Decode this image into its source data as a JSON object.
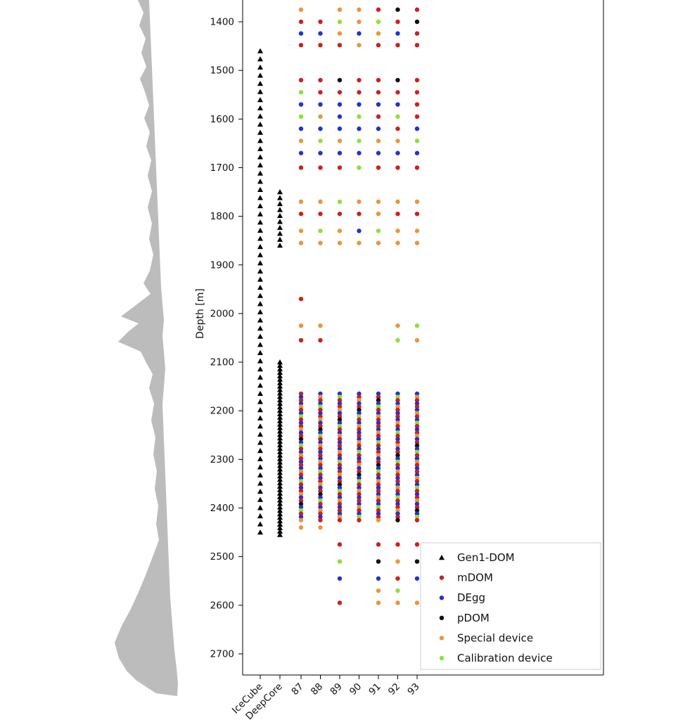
{
  "chart_data": {
    "type": "scatter",
    "title": "",
    "ylabel": "Depth [m]",
    "ylim": [
      1355,
      2745
    ],
    "y_ticks": [
      1400,
      1500,
      1600,
      1700,
      1800,
      1900,
      2000,
      2100,
      2200,
      2300,
      2400,
      2500,
      2600,
      2700
    ],
    "categories": [
      "IceCube",
      "DeepCore",
      "87",
      "88",
      "89",
      "90",
      "91",
      "92",
      "93"
    ],
    "legend_position": "lower right",
    "colors": {
      "gen1": "#000000",
      "mdom": "#cc2020",
      "degg": "#2233cc",
      "pdom": "#111111",
      "special": "#e8963c",
      "cal": "#8de03c",
      "dust": "#bcbcbc"
    },
    "legend": [
      {
        "key": "gen1",
        "label": "Gen1-DOM",
        "marker": "triangle"
      },
      {
        "key": "mdom",
        "label": "mDOM",
        "marker": "dot"
      },
      {
        "key": "degg",
        "label": "DEgg",
        "marker": "dot"
      },
      {
        "key": "pdom",
        "label": "pDOM",
        "marker": "dot"
      },
      {
        "key": "special",
        "label": "Special device",
        "marker": "dot"
      },
      {
        "key": "cal",
        "label": "Calibration device",
        "marker": "dot"
      }
    ],
    "gen1_runs": [
      {
        "column": "IceCube",
        "start_depth": 1460,
        "end_depth": 2450,
        "count": 60
      },
      {
        "column": "DeepCore",
        "start_depth": 1750,
        "end_depth": 1860,
        "count": 10
      },
      {
        "column": "DeepCore",
        "start_depth": 2100,
        "end_depth": 2455,
        "count": 51
      }
    ],
    "sparse_rows": [
      {
        "depth": 1375,
        "points": {
          "87": "special",
          "89": "special",
          "90": "special",
          "91": "mdom",
          "92": "pdom",
          "93": "mdom"
        }
      },
      {
        "depth": 1400,
        "points": {
          "87": "mdom",
          "88": "mdom",
          "89": "cal",
          "90": "special",
          "91": "cal",
          "92": "mdom",
          "93": "pdom"
        }
      },
      {
        "depth": 1424,
        "points": {
          "87": "degg",
          "88": "degg",
          "89": "special",
          "90": "degg",
          "91": "special",
          "92": "degg",
          "93": "mdom"
        }
      },
      {
        "depth": 1448,
        "points": {
          "87": "mdom",
          "88": "mdom",
          "89": "mdom",
          "90": "special",
          "91": "mdom",
          "92": "mdom",
          "93": "mdom"
        }
      },
      {
        "depth": 1520,
        "points": {
          "87": "mdom",
          "88": "mdom",
          "89": "pdom",
          "90": "mdom",
          "91": "mdom",
          "92": "pdom",
          "93": "mdom"
        }
      },
      {
        "depth": 1545,
        "points": {
          "87": "cal",
          "88": "mdom",
          "89": "mdom",
          "90": "mdom",
          "91": "mdom",
          "92": "mdom",
          "93": "mdom"
        }
      },
      {
        "depth": 1570,
        "points": {
          "87": "degg",
          "88": "degg",
          "89": "degg",
          "90": "degg",
          "91": "degg",
          "92": "degg",
          "93": "mdom"
        }
      },
      {
        "depth": 1595,
        "points": {
          "87": "cal",
          "88": "special",
          "89": "degg",
          "90": "cal",
          "91": "mdom",
          "92": "cal",
          "93": "mdom"
        }
      },
      {
        "depth": 1620,
        "points": {
          "87": "degg",
          "88": "degg",
          "89": "degg",
          "90": "degg",
          "91": "degg",
          "92": "mdom",
          "93": "degg"
        }
      },
      {
        "depth": 1645,
        "points": {
          "87": "special",
          "88": "cal",
          "89": "special",
          "90": "cal",
          "91": "special",
          "92": "special",
          "93": "cal"
        }
      },
      {
        "depth": 1670,
        "points": {
          "87": "degg",
          "88": "degg",
          "89": "degg",
          "90": "degg",
          "91": "degg",
          "92": "degg",
          "93": "degg"
        }
      },
      {
        "depth": 1700,
        "points": {
          "87": "mdom",
          "88": "mdom",
          "89": "mdom",
          "90": "cal",
          "91": "mdom",
          "92": "mdom",
          "93": "mdom"
        }
      },
      {
        "depth": 1770,
        "points": {
          "87": "special",
          "88": "special",
          "89": "cal",
          "90": "special",
          "91": "special",
          "92": "special",
          "93": "special"
        }
      },
      {
        "depth": 1795,
        "points": {
          "87": "mdom",
          "88": "mdom",
          "89": "mdom",
          "90": "mdom",
          "91": "special",
          "92": "mdom",
          "93": "mdom"
        }
      },
      {
        "depth": 1830,
        "points": {
          "87": "special",
          "88": "cal",
          "89": "special",
          "90": "degg",
          "91": "cal",
          "92": "special",
          "93": "special"
        }
      },
      {
        "depth": 1855,
        "points": {
          "87": "special",
          "88": "special",
          "89": "special",
          "90": "special",
          "91": "special",
          "92": "special",
          "93": "special"
        }
      },
      {
        "depth": 1970,
        "points": {
          "87": "mdom"
        }
      },
      {
        "depth": 2025,
        "points": {
          "87": "special",
          "88": "special",
          "92": "special",
          "93": "cal"
        }
      },
      {
        "depth": 2055,
        "points": {
          "87": "mdom",
          "88": "mdom",
          "92": "cal",
          "93": "special"
        }
      },
      {
        "depth": 2440,
        "points": {
          "87": "special",
          "88": "special"
        }
      },
      {
        "depth": 2475,
        "points": {
          "89": "mdom",
          "91": "mdom",
          "92": "mdom",
          "93": "mdom"
        }
      },
      {
        "depth": 2510,
        "points": {
          "89": "cal",
          "91": "pdom",
          "92": "special",
          "93": "pdom"
        }
      },
      {
        "depth": 2545,
        "points": {
          "89": "degg",
          "91": "degg",
          "92": "mdom",
          "93": "degg"
        }
      },
      {
        "depth": 2570,
        "points": {
          "91": "special",
          "92": "cal"
        }
      },
      {
        "depth": 2595,
        "points": {
          "89": "mdom",
          "91": "special",
          "92": "special",
          "93": "special"
        }
      }
    ],
    "dense_runs": [
      {
        "columns": [
          "87",
          "88",
          "89",
          "90",
          "91",
          "92",
          "93"
        ],
        "start_depth": 2165,
        "end_depth": 2425,
        "count": 40,
        "pattern": [
          "mdom",
          "degg",
          "mdom",
          "degg",
          "special",
          "mdom",
          "degg",
          "cal",
          "mdom",
          "degg",
          "mdom",
          "special",
          "degg",
          "mdom",
          "pdom",
          "degg",
          "cal",
          "mdom",
          "degg",
          "special"
        ],
        "column_offset_step": 3
      }
    ],
    "dust_profile": {
      "polygon": [
        [
          196,
          0
        ],
        [
          204,
          18
        ],
        [
          198,
          36
        ],
        [
          207,
          55
        ],
        [
          201,
          75
        ],
        [
          208,
          95
        ],
        [
          199,
          112
        ],
        [
          206,
          130
        ],
        [
          212,
          150
        ],
        [
          205,
          168
        ],
        [
          213,
          188
        ],
        [
          208,
          208
        ],
        [
          215,
          228
        ],
        [
          210,
          250
        ],
        [
          216,
          272
        ],
        [
          210,
          295
        ],
        [
          216,
          318
        ],
        [
          212,
          340
        ],
        [
          218,
          362
        ],
        [
          213,
          385
        ],
        [
          204,
          403
        ],
        [
          214,
          418
        ],
        [
          188,
          438
        ],
        [
          172,
          450
        ],
        [
          197,
          460
        ],
        [
          182,
          472
        ],
        [
          168,
          486
        ],
        [
          200,
          500
        ],
        [
          208,
          516
        ],
        [
          217,
          532
        ],
        [
          212,
          552
        ],
        [
          219,
          574
        ],
        [
          215,
          598
        ],
        [
          221,
          622
        ],
        [
          218,
          646
        ],
        [
          223,
          670
        ],
        [
          220,
          695
        ],
        [
          225,
          720
        ],
        [
          222,
          745
        ],
        [
          226,
          768
        ],
        [
          217,
          792
        ],
        [
          207,
          818
        ],
        [
          197,
          842
        ],
        [
          186,
          866
        ],
        [
          173,
          890
        ],
        [
          163,
          914
        ],
        [
          169,
          936
        ],
        [
          180,
          954
        ],
        [
          193,
          967
        ],
        [
          208,
          977
        ],
        [
          222,
          986
        ],
        [
          252,
          990
        ],
        [
          253,
          972
        ],
        [
          251,
          950
        ],
        [
          248,
          925
        ],
        [
          246,
          900
        ],
        [
          244,
          875
        ],
        [
          242,
          850
        ],
        [
          241,
          825
        ],
        [
          240,
          800
        ],
        [
          239,
          775
        ],
        [
          238,
          750
        ],
        [
          237,
          725
        ],
        [
          236,
          700
        ],
        [
          235,
          675
        ],
        [
          234,
          650
        ],
        [
          233,
          625
        ],
        [
          232,
          600
        ],
        [
          231,
          575
        ],
        [
          233,
          550
        ],
        [
          235,
          525
        ],
        [
          233,
          500
        ],
        [
          231,
          478
        ],
        [
          233,
          455
        ],
        [
          231,
          432
        ],
        [
          229,
          408
        ],
        [
          228,
          384
        ],
        [
          227,
          360
        ],
        [
          226,
          336
        ],
        [
          225,
          312
        ],
        [
          224,
          288
        ],
        [
          223,
          264
        ],
        [
          222,
          240
        ],
        [
          221,
          216
        ],
        [
          220,
          192
        ],
        [
          219,
          168
        ],
        [
          218,
          144
        ],
        [
          217,
          120
        ],
        [
          216,
          96
        ],
        [
          215,
          72
        ],
        [
          214,
          48
        ],
        [
          213,
          24
        ],
        [
          212,
          0
        ]
      ]
    }
  }
}
